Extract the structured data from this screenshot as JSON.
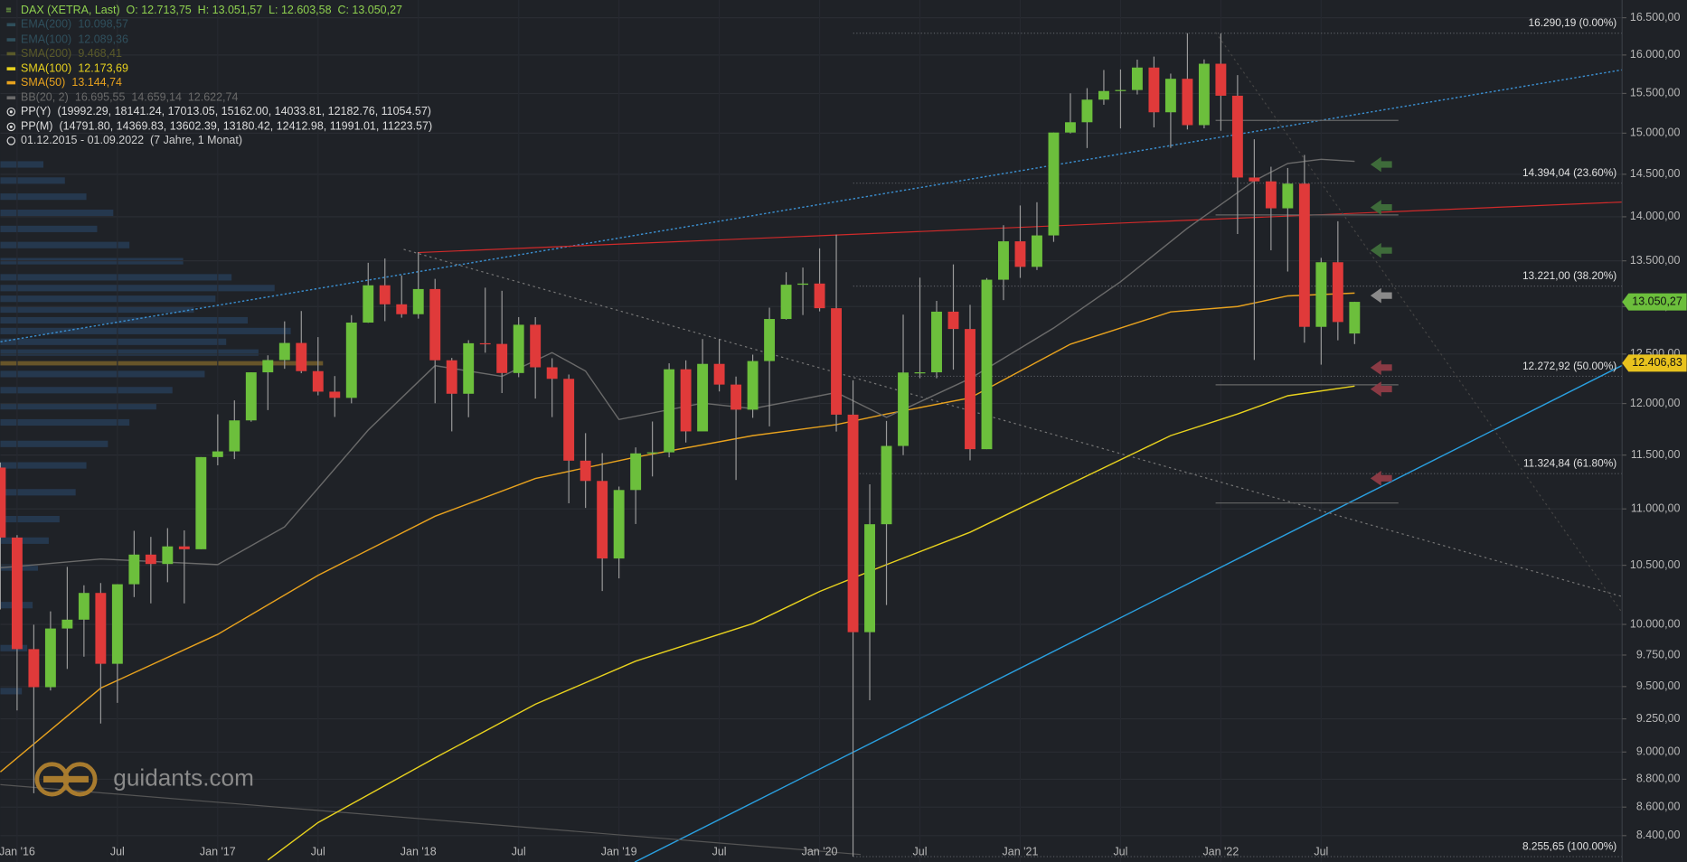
{
  "chart_data": {
    "type": "candlestick",
    "header": "DAX (XETRA, Last)  O: 12.713,75  H: 13.051,57  L: 12.603,58  C: 13.050,27",
    "period": "01.12.2015 - 01.09.2022  (7 Jahre, 1 Monat)",
    "logo": "guidants.com",
    "log_scale": true,
    "grid": true,
    "up_color": "#6cbf3c",
    "down_color": "#e03a3a",
    "xlim": [
      "2015-12",
      "2024-01"
    ],
    "ylim": [
      8219,
      16743
    ],
    "xticks": [
      {
        "value": "2016-01",
        "label": "Jan '16"
      },
      {
        "value": "2016-07",
        "label": "Jul"
      },
      {
        "value": "2017-01",
        "label": "Jan '17"
      },
      {
        "value": "2017-07",
        "label": "Jul"
      },
      {
        "value": "2018-01",
        "label": "Jan '18"
      },
      {
        "value": "2018-07",
        "label": "Jul"
      },
      {
        "value": "2019-01",
        "label": "Jan '19"
      },
      {
        "value": "2019-07",
        "label": "Jul"
      },
      {
        "value": "2020-01",
        "label": "Jan '20"
      },
      {
        "value": "2020-07",
        "label": "Jul"
      },
      {
        "value": "2021-01",
        "label": "Jan '21"
      },
      {
        "value": "2021-07",
        "label": "Jul"
      },
      {
        "value": "2022-01",
        "label": "Jan '22"
      },
      {
        "value": "2022-07",
        "label": "Jul"
      }
    ],
    "yticks": [
      {
        "value": 8400,
        "label": "8.400,00"
      },
      {
        "value": 8600,
        "label": "8.600,00"
      },
      {
        "value": 8800,
        "label": "8.800,00"
      },
      {
        "value": 9000,
        "label": "9.000,00"
      },
      {
        "value": 9250,
        "label": "9.250,00"
      },
      {
        "value": 9500,
        "label": "9.500,00"
      },
      {
        "value": 9750,
        "label": "9.750,00"
      },
      {
        "value": 10000,
        "label": "10.000,00"
      },
      {
        "value": 10500,
        "label": "10.500,00"
      },
      {
        "value": 11000,
        "label": "11.000,00"
      },
      {
        "value": 11500,
        "label": "11.500,00"
      },
      {
        "value": 12000,
        "label": "12.000,00"
      },
      {
        "value": 12500,
        "label": "12.500,00"
      },
      {
        "value": 13000,
        "label": "13.000,00"
      },
      {
        "value": 13500,
        "label": "13.500,00"
      },
      {
        "value": 14000,
        "label": "14.000,00"
      },
      {
        "value": 14500,
        "label": "14.500,00"
      },
      {
        "value": 15000,
        "label": "15.000,00"
      },
      {
        "value": 15500,
        "label": "15.500,00"
      },
      {
        "value": 16000,
        "label": "16.000,00"
      },
      {
        "value": 16500,
        "label": "16.500,00"
      }
    ],
    "x": [
      "2015-12",
      "2016-01",
      "2016-02",
      "2016-03",
      "2016-04",
      "2016-05",
      "2016-06",
      "2016-07",
      "2016-08",
      "2016-09",
      "2016-10",
      "2016-11",
      "2016-12",
      "2017-01",
      "2017-02",
      "2017-03",
      "2017-04",
      "2017-05",
      "2017-06",
      "2017-07",
      "2017-08",
      "2017-09",
      "2017-10",
      "2017-11",
      "2017-12",
      "2018-01",
      "2018-02",
      "2018-03",
      "2018-04",
      "2018-05",
      "2018-06",
      "2018-07",
      "2018-08",
      "2018-09",
      "2018-10",
      "2018-11",
      "2018-12",
      "2019-01",
      "2019-02",
      "2019-03",
      "2019-04",
      "2019-05",
      "2019-06",
      "2019-07",
      "2019-08",
      "2019-09",
      "2019-10",
      "2019-11",
      "2019-12",
      "2020-01",
      "2020-02",
      "2020-03",
      "2020-04",
      "2020-05",
      "2020-06",
      "2020-07",
      "2020-08",
      "2020-09",
      "2020-10",
      "2020-11",
      "2020-12",
      "2021-01",
      "2021-02",
      "2021-03",
      "2021-04",
      "2021-05",
      "2021-06",
      "2021-07",
      "2021-08",
      "2021-09",
      "2021-10",
      "2021-11",
      "2021-12",
      "2022-01",
      "2022-02",
      "2022-03",
      "2022-04",
      "2022-05",
      "2022-06",
      "2022-07",
      "2022-08",
      "2022-09"
    ],
    "open": [
      11382,
      10743,
      9798,
      9495,
      9966,
      10039,
      10263,
      9680,
      10337,
      10593,
      10511,
      10665,
      10640,
      11481,
      11535,
      11834,
      12313,
      12438,
      12615,
      12325,
      12118,
      12056,
      12829,
      13230,
      13024,
      12918,
      13189,
      12436,
      12097,
      12612,
      12605,
      12306,
      12806,
      12364,
      12247,
      11447,
      11257,
      10559,
      11173,
      11516,
      11526,
      12344,
      11727,
      12399,
      12189,
      11939,
      12428,
      12867,
      13236,
      13249,
      12982,
      11890,
      9936,
      10862,
      11587,
      12311,
      12313,
      12945,
      12761,
      11556,
      13291,
      13719,
      13433,
      13786,
      15008,
      15136,
      15421,
      15531,
      15544,
      15835,
      15261,
      15689,
      15100,
      15885,
      15471,
      14461,
      14415,
      14098,
      14388,
      12784,
      13484,
      12713.75
    ],
    "high": [
      11430,
      10765,
      9997,
      10108,
      10486,
      10328,
      10347,
      10338,
      10803,
      10749,
      10827,
      10807,
      11481,
      11893,
      12031,
      12313,
      12487,
      12842,
      12952,
      12676,
      12275,
      12908,
      13478,
      13526,
      13338,
      13597,
      13300,
      12460,
      12644,
      13204,
      13170,
      12887,
      12887,
      12457,
      12290,
      11710,
      11518,
      11205,
      11573,
      11823,
      12405,
      12435,
      12656,
      12656,
      12270,
      12494,
      12988,
      13374,
      13425,
      13640,
      13795,
      12232,
      11226,
      11828,
      12913,
      13314,
      13061,
      13460,
      13018,
      13309,
      13903,
      14131,
      14169,
      15008,
      15502,
      15568,
      15803,
      15810,
      15939,
      15979,
      15756,
      16290,
      15942,
      16286,
      15736,
      14925,
      14590,
      14575,
      14733,
      13533,
      13948,
      13051.57
    ],
    "low": [
      10124,
      9314,
      8699,
      9469,
      9639,
      9737,
      9214,
      9373,
      10228,
      10175,
      10354,
      10175,
      10640,
      11403,
      11462,
      11821,
      11935,
      12349,
      12304,
      12081,
      11868,
      12002,
      12826,
      12844,
      12881,
      12871,
      12003,
      11727,
      11865,
      12514,
      12104,
      12264,
      12049,
      11866,
      11051,
      11009,
      10279,
      10387,
      10864,
      11299,
      11479,
      11620,
      11765,
      12120,
      11266,
      11859,
      11776,
      12860,
      12909,
      12948,
      11725,
      8256,
      9393,
      10161,
      11499,
      12253,
      12253,
      12340,
      11450,
      11556,
      13069,
      13311,
      13398,
      13713,
      14997,
      14817,
      15356,
      15059,
      15487,
      15072,
      14819,
      15046,
      15060,
      15030,
      13802,
      12439,
      13618,
      13381,
      12618,
      12391,
      12643,
      12603.58
    ],
    "close": [
      10743,
      9798,
      9495,
      9966,
      10039,
      10263,
      9680,
      10337,
      10593,
      10511,
      10665,
      10640,
      11481,
      11535,
      11834,
      12313,
      12438,
      12615,
      12325,
      12118,
      12056,
      12829,
      13230,
      13024,
      12918,
      13189,
      12436,
      12097,
      12612,
      12605,
      12306,
      12806,
      12364,
      12247,
      11447,
      11257,
      10559,
      11173,
      11516,
      11526,
      12344,
      11727,
      12399,
      12189,
      11939,
      12428,
      12867,
      13236,
      13249,
      12982,
      11890,
      9936,
      10862,
      11587,
      12311,
      12313,
      12945,
      12761,
      11556,
      13291,
      13719,
      13433,
      13786,
      15008,
      15136,
      15421,
      15531,
      15544,
      15835,
      15261,
      15689,
      15100,
      15885,
      15471,
      14461,
      14415,
      14098,
      14388,
      12784,
      13484,
      12835,
      13050.27
    ],
    "legend": [
      {
        "name": "EMA(200)",
        "text": "10.098,57",
        "color": "#2f4f5c"
      },
      {
        "name": "EMA(100)",
        "text": "12.089,36",
        "color": "#2f4f5c"
      },
      {
        "name": "SMA(200)",
        "text": "9.468,41",
        "color": "#5a5a2a"
      },
      {
        "name": "SMA(100)",
        "text": "12.173,69",
        "color": "#e8d21e",
        "x": [
          "2017-04",
          "2017-07",
          "2018-02",
          "2018-08",
          "2019-02",
          "2019-09",
          "2020-01",
          "2020-05",
          "2020-10",
          "2021-04",
          "2021-08",
          "2021-10",
          "2022-02",
          "2022-05",
          "2022-09"
        ],
        "values": [
          8232,
          8491,
          8957,
          9362,
          9701,
          10006,
          10275,
          10506,
          10790,
          11230,
          11533,
          11686,
          11896,
          12077,
          12174
        ]
      },
      {
        "name": "SMA(50)",
        "text": "13.144,74",
        "color": "#e8a21e",
        "x": [
          "2015-12",
          "2016-06",
          "2017-01",
          "2017-07",
          "2018-02",
          "2018-08",
          "2019-02",
          "2019-09",
          "2020-02",
          "2020-05",
          "2020-10",
          "2021-04",
          "2021-10",
          "2022-02",
          "2022-05",
          "2022-09"
        ],
        "values": [
          8853,
          9488,
          9918,
          10413,
          10934,
          11280,
          11481,
          11686,
          11792,
          11896,
          12056,
          12603,
          12943,
          13000,
          13115,
          13145
        ]
      },
      {
        "name": "BB(20, 2)",
        "text": "16.695,55  14.659,14  12.622,74",
        "color": "#6a6a6a",
        "x": [
          "2015-12",
          "2016-06",
          "2017-01",
          "2017-05",
          "2017-10",
          "2018-02",
          "2018-06",
          "2018-09",
          "2018-11",
          "2019-01",
          "2019-06",
          "2019-09",
          "2020-02",
          "2020-05",
          "2020-10",
          "2021-03",
          "2021-07",
          "2021-11",
          "2022-03",
          "2022-05",
          "2022-07",
          "2022-09"
        ],
        "values": [
          10478,
          10554,
          10506,
          10838,
          11739,
          12381,
          12272,
          12514,
          12326,
          11843,
          12003,
          11949,
          12109,
          11864,
          12250,
          12771,
          13269,
          13869,
          14422,
          14629,
          14680,
          14656
        ]
      },
      {
        "name": "PP(Y)",
        "text": "(19992.29, 18141.24, 17013.05, 15162.00, 14033.81, 12182.76, 11054.57)",
        "color": "#dddddd"
      },
      {
        "name": "PP(M)",
        "text": "(14791.80, 14369.83, 13602.39, 13180.42, 12412.98, 11991.01, 11223.57)",
        "color": "#dddddd"
      }
    ],
    "fibonacci": [
      {
        "value": 16290.19,
        "label": "16.290,19 (0.00%)"
      },
      {
        "value": 14394.04,
        "label": "14.394,04 (23.60%)"
      },
      {
        "value": 13221.0,
        "label": "13.221,00 (38.20%)"
      },
      {
        "value": 12272.92,
        "label": "12.272,92 (50.00%)"
      },
      {
        "value": 11324.84,
        "label": "11.324,84 (61.80%)"
      },
      {
        "value": 8255.65,
        "label": "8.255,65 (100.00%)"
      }
    ],
    "price_markers": [
      {
        "value": 13050.27,
        "label": "13.050,27",
        "color": "#6cbf3c"
      },
      {
        "value": 12406.83,
        "label": "12.406,83",
        "color": "#e8c21e"
      }
    ]
  }
}
